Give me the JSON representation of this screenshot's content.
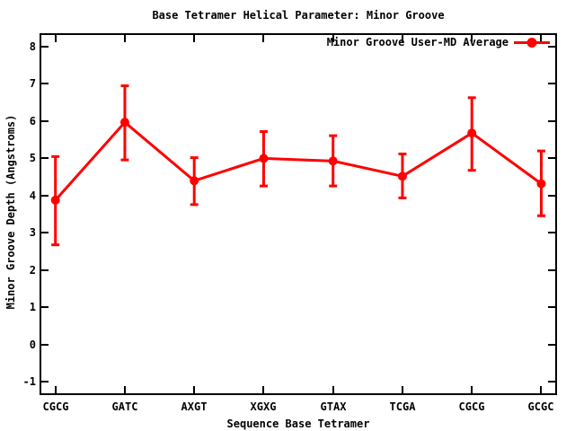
{
  "chart_data": {
    "type": "line",
    "title": "Base Tetramer Helical Parameter: Minor Groove",
    "xlabel": "Sequence Base Tetramer",
    "ylabel": "Minor Groove Depth (Angstroms)",
    "categories": [
      "CGCG",
      "GATC",
      "AXGT",
      "XGXG",
      "GTAX",
      "TCGA",
      "CGCG",
      "GCGC"
    ],
    "series": [
      {
        "name": "Minor Groove User-MD Average",
        "color": "#ff0000",
        "marker": "filled-circle",
        "values": [
          3.88,
          5.97,
          4.4,
          5.0,
          4.93,
          4.52,
          5.68,
          4.32
        ],
        "err_low": [
          2.68,
          4.96,
          3.76,
          4.26,
          4.26,
          3.94,
          4.68,
          3.46
        ],
        "err_high": [
          5.05,
          6.95,
          5.02,
          5.72,
          5.61,
          5.12,
          6.63,
          5.2
        ]
      }
    ],
    "y_ticks": [
      -1,
      0,
      1,
      2,
      3,
      4,
      5,
      6,
      7,
      8
    ],
    "ylim": [
      -1.35,
      8.35
    ],
    "grid": false,
    "legend_position": "inside-top-right",
    "axis_color": "#000000",
    "background_color": "#ffffff"
  }
}
